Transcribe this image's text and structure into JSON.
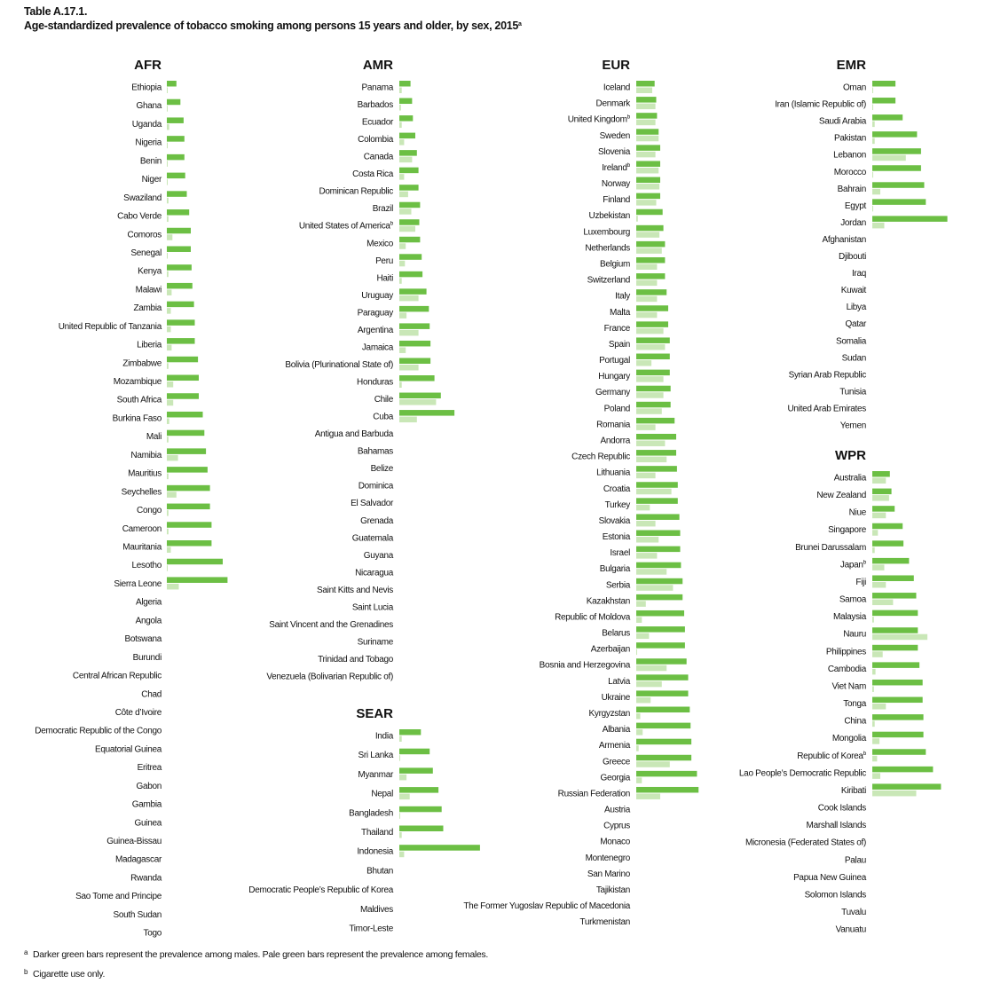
{
  "header": {
    "table_id": "Table A.17.1.",
    "title": "Age-standardized prevalence of tobacco smoking among persons 15 years and older, by sex, 2015",
    "title_note_mark": "a"
  },
  "footnotes": [
    {
      "mark": "a",
      "text": "Darker green bars represent the prevalence among males. Pale green bars represent the prevalence among females."
    },
    {
      "mark": "b",
      "text": "Cigarette use only."
    }
  ],
  "colors": {
    "male": "#6cbf44",
    "female": "#c9e7b7",
    "text": "#111111"
  },
  "chart_data": {
    "type": "bar",
    "orientation": "horizontal",
    "grid": false,
    "legend": "none (explained in footnote a)",
    "series_names": [
      "males",
      "females"
    ],
    "units": "bar length only; no axis printed",
    "regions": [
      {
        "name": "AFR",
        "countries": [
          {
            "name": "Ethiopia",
            "male": 12,
            "female": 1
          },
          {
            "name": "Ghana",
            "male": 17,
            "female": 1
          },
          {
            "name": "Uganda",
            "male": 21,
            "female": 3
          },
          {
            "name": "Nigeria",
            "male": 22,
            "female": 1
          },
          {
            "name": "Benin",
            "male": 22,
            "female": 1
          },
          {
            "name": "Niger",
            "male": 23,
            "female": 1
          },
          {
            "name": "Swaziland",
            "male": 25,
            "female": 2
          },
          {
            "name": "Cabo Verde",
            "male": 28,
            "female": 2
          },
          {
            "name": "Comoros",
            "male": 30,
            "female": 7
          },
          {
            "name": "Senegal",
            "male": 30,
            "female": 1
          },
          {
            "name": "Kenya",
            "male": 31,
            "female": 2
          },
          {
            "name": "Malawi",
            "male": 32,
            "female": 6
          },
          {
            "name": "Zambia",
            "male": 34,
            "female": 5
          },
          {
            "name": "United Republic of Tanzania",
            "male": 35,
            "female": 5
          },
          {
            "name": "Liberia",
            "male": 35,
            "female": 6
          },
          {
            "name": "Zimbabwe",
            "male": 39,
            "female": 2
          },
          {
            "name": "Mozambique",
            "male": 40,
            "female": 8
          },
          {
            "name": "South Africa",
            "male": 40,
            "female": 8
          },
          {
            "name": "Burkina Faso",
            "male": 45,
            "female": 3
          },
          {
            "name": "Mali",
            "male": 47,
            "female": 2
          },
          {
            "name": "Namibia",
            "male": 49,
            "female": 14
          },
          {
            "name": "Mauritius",
            "male": 51,
            "female": 2
          },
          {
            "name": "Seychelles",
            "male": 54,
            "female": 12
          },
          {
            "name": "Congo",
            "male": 54,
            "female": 2
          },
          {
            "name": "Cameroon",
            "male": 56,
            "female": 2
          },
          {
            "name": "Mauritania",
            "male": 56,
            "female": 5
          },
          {
            "name": "Lesotho",
            "male": 70,
            "female": 1
          },
          {
            "name": "Sierra Leone",
            "male": 76,
            "female": 15
          },
          {
            "name": "Algeria"
          },
          {
            "name": "Angola"
          },
          {
            "name": "Botswana"
          },
          {
            "name": "Burundi"
          },
          {
            "name": "Central African Republic"
          },
          {
            "name": "Chad"
          },
          {
            "name": "Côte d’Ivoire"
          },
          {
            "name": "Democratic Republic of the Congo"
          },
          {
            "name": "Equatorial Guinea"
          },
          {
            "name": "Eritrea"
          },
          {
            "name": "Gabon"
          },
          {
            "name": "Gambia"
          },
          {
            "name": "Guinea"
          },
          {
            "name": "Guinea-Bissau"
          },
          {
            "name": "Madagascar"
          },
          {
            "name": "Rwanda"
          },
          {
            "name": "Sao Tome and Principe"
          },
          {
            "name": "South Sudan"
          },
          {
            "name": "Togo"
          }
        ]
      },
      {
        "name": "AMR",
        "countries": [
          {
            "name": "Panama",
            "male": 14,
            "female": 3
          },
          {
            "name": "Barbados",
            "male": 16,
            "female": 2
          },
          {
            "name": "Ecuador",
            "male": 17,
            "female": 3
          },
          {
            "name": "Colombia",
            "male": 20,
            "female": 6
          },
          {
            "name": "Canada",
            "male": 22,
            "female": 16
          },
          {
            "name": "Costa Rica",
            "male": 24,
            "female": 6
          },
          {
            "name": "Dominican Republic",
            "male": 24,
            "female": 11
          },
          {
            "name": "Brazil",
            "male": 26,
            "female": 15
          },
          {
            "name": "United States of America",
            "note": "b",
            "male": 25,
            "female": 20
          },
          {
            "name": "Mexico",
            "male": 26,
            "female": 8
          },
          {
            "name": "Peru",
            "male": 28,
            "female": 7
          },
          {
            "name": "Haiti",
            "male": 29,
            "female": 3
          },
          {
            "name": "Uruguay",
            "male": 34,
            "female": 24
          },
          {
            "name": "Paraguay",
            "male": 37,
            "female": 9
          },
          {
            "name": "Argentina",
            "male": 38,
            "female": 24
          },
          {
            "name": "Jamaica",
            "male": 39,
            "female": 8
          },
          {
            "name": "Bolivia (Plurinational State of)",
            "male": 39,
            "female": 24
          },
          {
            "name": "Honduras",
            "male": 44,
            "female": 3
          },
          {
            "name": "Chile",
            "male": 52,
            "female": 46
          },
          {
            "name": "Cuba",
            "male": 69,
            "female": 22
          },
          {
            "name": "Antigua and Barbuda"
          },
          {
            "name": "Bahamas"
          },
          {
            "name": "Belize"
          },
          {
            "name": "Dominica"
          },
          {
            "name": "El Salvador"
          },
          {
            "name": "Grenada"
          },
          {
            "name": "Guatemala"
          },
          {
            "name": "Guyana"
          },
          {
            "name": "Nicaragua"
          },
          {
            "name": "Saint Kitts and Nevis"
          },
          {
            "name": "Saint Lucia"
          },
          {
            "name": "Saint Vincent and the Grenadines"
          },
          {
            "name": "Suriname"
          },
          {
            "name": "Trinidad and Tobago"
          },
          {
            "name": "Venezuela (Bolivarian Republic of)"
          }
        ]
      },
      {
        "name": "SEAR",
        "countries": [
          {
            "name": "India",
            "male": 27,
            "female": 3
          },
          {
            "name": "Sri Lanka",
            "male": 38,
            "female": 1
          },
          {
            "name": "Myanmar",
            "male": 42,
            "female": 9
          },
          {
            "name": "Nepal",
            "male": 49,
            "female": 13
          },
          {
            "name": "Bangladesh",
            "male": 53,
            "female": 1
          },
          {
            "name": "Thailand",
            "male": 55,
            "female": 3
          },
          {
            "name": "Indonesia",
            "male": 101,
            "female": 6
          },
          {
            "name": "Bhutan"
          },
          {
            "name": "Democratic People’s Republic of Korea"
          },
          {
            "name": "Maldives"
          },
          {
            "name": "Timor-Leste"
          }
        ]
      },
      {
        "name": "EUR",
        "countries": [
          {
            "name": "Iceland",
            "male": 23,
            "female": 20
          },
          {
            "name": "Denmark",
            "male": 25,
            "female": 24
          },
          {
            "name": "United Kingdom",
            "note": "b",
            "male": 26,
            "female": 24
          },
          {
            "name": "Sweden",
            "male": 28,
            "female": 28
          },
          {
            "name": "Slovenia",
            "male": 30,
            "female": 24
          },
          {
            "name": "Ireland",
            "note": "b",
            "male": 30,
            "female": 28
          },
          {
            "name": "Norway",
            "male": 30,
            "female": 29
          },
          {
            "name": "Finland",
            "male": 30,
            "female": 25
          },
          {
            "name": "Uzbekistan",
            "male": 33,
            "female": 2
          },
          {
            "name": "Luxembourg",
            "male": 34,
            "female": 29
          },
          {
            "name": "Netherlands",
            "male": 36,
            "female": 32
          },
          {
            "name": "Belgium",
            "male": 36,
            "female": 26
          },
          {
            "name": "Switzerland",
            "male": 36,
            "female": 26
          },
          {
            "name": "Italy",
            "male": 38,
            "female": 26
          },
          {
            "name": "Malta",
            "male": 40,
            "female": 26
          },
          {
            "name": "France",
            "male": 40,
            "female": 34
          },
          {
            "name": "Spain",
            "male": 42,
            "female": 36
          },
          {
            "name": "Portugal",
            "male": 42,
            "female": 19
          },
          {
            "name": "Hungary",
            "male": 42,
            "female": 34
          },
          {
            "name": "Germany",
            "male": 43,
            "female": 34
          },
          {
            "name": "Poland",
            "male": 43,
            "female": 32
          },
          {
            "name": "Romania",
            "male": 48,
            "female": 24
          },
          {
            "name": "Andorra",
            "male": 50,
            "female": 36
          },
          {
            "name": "Czech Republic",
            "male": 50,
            "female": 38
          },
          {
            "name": "Lithuania",
            "male": 51,
            "female": 24
          },
          {
            "name": "Croatia",
            "male": 52,
            "female": 44
          },
          {
            "name": "Turkey",
            "male": 52,
            "female": 17
          },
          {
            "name": "Slovakia",
            "male": 54,
            "female": 24
          },
          {
            "name": "Estonia",
            "male": 55,
            "female": 28
          },
          {
            "name": "Israel",
            "male": 55,
            "female": 26
          },
          {
            "name": "Bulgaria",
            "male": 56,
            "female": 38
          },
          {
            "name": "Serbia",
            "male": 58,
            "female": 46
          },
          {
            "name": "Kazakhstan",
            "male": 58,
            "female": 12
          },
          {
            "name": "Republic of Moldova",
            "male": 60,
            "female": 7
          },
          {
            "name": "Belarus",
            "male": 61,
            "female": 16
          },
          {
            "name": "Azerbaijan",
            "male": 61,
            "female": 1
          },
          {
            "name": "Bosnia and Herzegovina",
            "male": 63,
            "female": 38
          },
          {
            "name": "Latvia",
            "male": 65,
            "female": 32
          },
          {
            "name": "Ukraine",
            "male": 65,
            "female": 18
          },
          {
            "name": "Kyrgyzstan",
            "male": 67,
            "female": 5
          },
          {
            "name": "Albania",
            "male": 68,
            "female": 8
          },
          {
            "name": "Armenia",
            "male": 69,
            "female": 3
          },
          {
            "name": "Greece",
            "male": 69,
            "female": 42
          },
          {
            "name": "Georgia",
            "male": 76,
            "female": 7
          },
          {
            "name": "Russian Federation",
            "male": 78,
            "female": 30
          },
          {
            "name": "Austria"
          },
          {
            "name": "Cyprus"
          },
          {
            "name": "Monaco"
          },
          {
            "name": "Montenegro"
          },
          {
            "name": "San Marino"
          },
          {
            "name": "Tajikistan"
          },
          {
            "name": "The Former Yugoslav Republic of Macedonia"
          },
          {
            "name": "Turkmenistan"
          }
        ]
      },
      {
        "name": "EMR",
        "countries": [
          {
            "name": "Oman",
            "male": 29,
            "female": 1
          },
          {
            "name": "Iran (Islamic Republic of)",
            "male": 29,
            "female": 1
          },
          {
            "name": "Saudi Arabia",
            "male": 38,
            "female": 3
          },
          {
            "name": "Pakistan",
            "male": 56,
            "female": 3
          },
          {
            "name": "Lebanon",
            "male": 61,
            "female": 42
          },
          {
            "name": "Morocco",
            "male": 61,
            "female": 1
          },
          {
            "name": "Bahrain",
            "male": 65,
            "female": 10
          },
          {
            "name": "Egypt",
            "male": 67,
            "female": 1
          },
          {
            "name": "Jordan",
            "male": 94,
            "female": 15
          },
          {
            "name": "Afghanistan"
          },
          {
            "name": "Djibouti"
          },
          {
            "name": "Iraq"
          },
          {
            "name": "Kuwait"
          },
          {
            "name": "Libya"
          },
          {
            "name": "Qatar"
          },
          {
            "name": "Somalia"
          },
          {
            "name": "Sudan"
          },
          {
            "name": "Syrian Arab Republic"
          },
          {
            "name": "Tunisia"
          },
          {
            "name": "United Arab Emirates"
          },
          {
            "name": "Yemen"
          }
        ]
      },
      {
        "name": "WPR",
        "countries": [
          {
            "name": "Australia",
            "male": 22,
            "female": 17
          },
          {
            "name": "New Zealand",
            "male": 24,
            "female": 21
          },
          {
            "name": "Niue",
            "male": 28,
            "female": 17
          },
          {
            "name": "Singapore",
            "male": 38,
            "female": 7
          },
          {
            "name": "Brunei Darussalam",
            "male": 39,
            "female": 3
          },
          {
            "name": "Japan",
            "note": "b",
            "male": 46,
            "female": 15
          },
          {
            "name": "Fiji",
            "male": 52,
            "female": 17
          },
          {
            "name": "Samoa",
            "male": 55,
            "female": 26
          },
          {
            "name": "Malaysia",
            "male": 57,
            "female": 2
          },
          {
            "name": "Nauru",
            "male": 57,
            "female": 69
          },
          {
            "name": "Philippines",
            "male": 57,
            "female": 13
          },
          {
            "name": "Cambodia",
            "male": 59,
            "female": 4
          },
          {
            "name": "Viet Nam",
            "male": 63,
            "female": 2
          },
          {
            "name": "Tonga",
            "male": 63,
            "female": 17
          },
          {
            "name": "China",
            "male": 64,
            "female": 3
          },
          {
            "name": "Mongolia",
            "male": 64,
            "female": 9
          },
          {
            "name": "Republic of Korea",
            "note": "b",
            "male": 67,
            "female": 6
          },
          {
            "name": "Lao People’s Democratic Republic",
            "male": 76,
            "female": 10
          },
          {
            "name": "Kiribati",
            "male": 86,
            "female": 55
          },
          {
            "name": "Cook Islands"
          },
          {
            "name": "Marshall Islands"
          },
          {
            "name": "Micronesia (Federated States of)"
          },
          {
            "name": "Palau"
          },
          {
            "name": "Papua New Guinea"
          },
          {
            "name": "Solomon Islands"
          },
          {
            "name": "Tuvalu"
          },
          {
            "name": "Vanuatu"
          }
        ]
      }
    ]
  }
}
